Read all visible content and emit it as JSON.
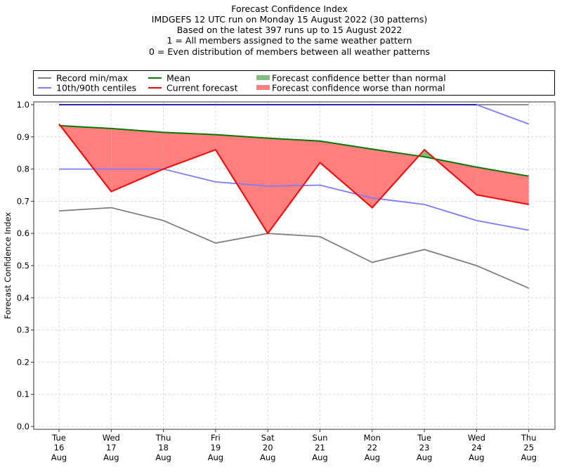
{
  "chart_data": {
    "type": "line",
    "title_lines": [
      "Forecast Confidence Index",
      "IMDGEFS 12 UTC run on Monday 15 August 2022 (30 patterns)",
      "Based on the latest 397 runs up to 15 August 2022",
      "1 = All members assigned to the same weather pattern",
      "0 = Even distribution of members between all weather patterns"
    ],
    "xlabel": "",
    "ylabel": "Forecast Confidence Index",
    "ylim": [
      0.0,
      1.0
    ],
    "yticks": [
      "0.0",
      "0.1",
      "0.2",
      "0.3",
      "0.4",
      "0.5",
      "0.6",
      "0.7",
      "0.8",
      "0.9",
      "1.0"
    ],
    "ytick_values": [
      0.0,
      0.1,
      0.2,
      0.3,
      0.4,
      0.5,
      0.6,
      0.7,
      0.8,
      0.9,
      1.0
    ],
    "categories": [
      [
        "Tue",
        "16",
        "Aug"
      ],
      [
        "Wed",
        "17",
        "Aug"
      ],
      [
        "Thu",
        "18",
        "Aug"
      ],
      [
        "Fri",
        "19",
        "Aug"
      ],
      [
        "Sat",
        "20",
        "Aug"
      ],
      [
        "Sun",
        "21",
        "Aug"
      ],
      [
        "Mon",
        "22",
        "Aug"
      ],
      [
        "Tue",
        "23",
        "Aug"
      ],
      [
        "Wed",
        "24",
        "Aug"
      ],
      [
        "Thu",
        "25",
        "Aug"
      ]
    ],
    "grid": true,
    "legend_position": "top",
    "series": [
      {
        "name": "Record min",
        "legend": "Record min/max",
        "color": "#808080",
        "values": [
          0.67,
          0.68,
          0.64,
          0.57,
          0.6,
          0.59,
          0.51,
          0.55,
          0.5,
          0.43
        ]
      },
      {
        "name": "Record max",
        "legend": "Record min/max",
        "color": "#808080",
        "values": [
          1.0,
          1.0,
          1.0,
          1.0,
          1.0,
          1.0,
          1.0,
          1.0,
          1.0,
          1.0
        ]
      },
      {
        "name": "10th centile",
        "legend": "10th/90th centiles",
        "color": "#7b7bff",
        "values": [
          0.8,
          0.8,
          0.8,
          0.76,
          0.747,
          0.75,
          0.71,
          0.69,
          0.64,
          0.61
        ]
      },
      {
        "name": "90th centile",
        "legend": "10th/90th centiles",
        "color": "#7b7bff",
        "values": [
          1.0,
          1.0,
          1.0,
          1.0,
          1.0,
          1.0,
          1.0,
          1.0,
          1.0,
          0.94
        ]
      },
      {
        "name": "Mean",
        "legend": "Mean",
        "color": "#007a00",
        "values": [
          0.935,
          0.926,
          0.914,
          0.907,
          0.896,
          0.887,
          0.862,
          0.838,
          0.806,
          0.778
        ]
      },
      {
        "name": "Current forecast",
        "legend": "Current forecast",
        "color": "#ff0000",
        "values": [
          0.94,
          0.73,
          0.8,
          0.86,
          0.6,
          0.82,
          0.68,
          0.86,
          0.72,
          0.69
        ]
      }
    ],
    "fills": [
      {
        "name": "Forecast confidence better than normal",
        "color": "#7fbf7f",
        "condition": "current > mean"
      },
      {
        "name": "Forecast confidence worse than normal",
        "color": "#ff7f7f",
        "condition": "current < mean"
      }
    ],
    "legend": [
      {
        "label": "Record min/max",
        "color": "#808080",
        "kind": "line"
      },
      {
        "label": "10th/90th centiles",
        "color": "#7b7bff",
        "kind": "line"
      },
      {
        "label": "Mean",
        "color": "#007a00",
        "kind": "line"
      },
      {
        "label": "Current forecast",
        "color": "#ff0000",
        "kind": "line"
      },
      {
        "label": "Forecast confidence better than normal",
        "color": "#7fbf7f",
        "kind": "patch"
      },
      {
        "label": "Forecast confidence worse than normal",
        "color": "#ff7f7f",
        "kind": "patch"
      }
    ]
  }
}
